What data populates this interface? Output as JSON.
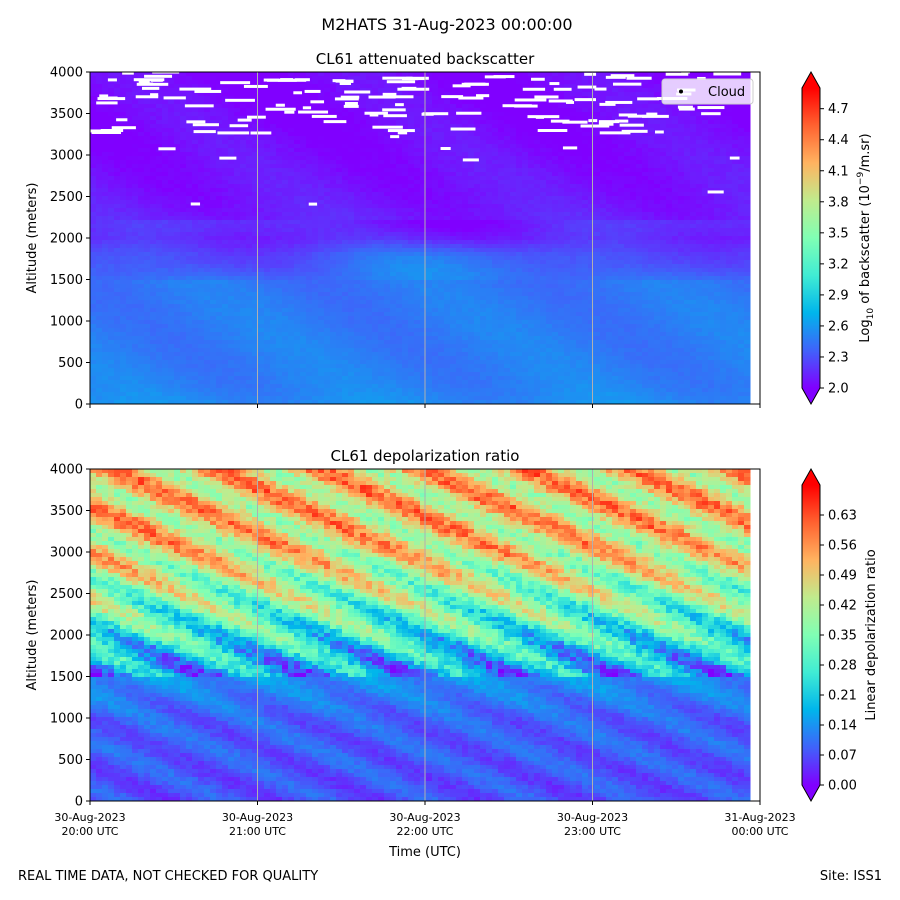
{
  "suptitle": "M2HATS 31-Aug-2023 00:00:00",
  "footer_left": "REAL TIME DATA, NOT CHECKED FOR QUALITY",
  "footer_right": "Site: ISS1",
  "xlabel": "Time (UTC)",
  "x_ticks": [
    {
      "line1": "30-Aug-2023",
      "line2": "20:00 UTC"
    },
    {
      "line1": "30-Aug-2023",
      "line2": "21:00 UTC"
    },
    {
      "line1": "30-Aug-2023",
      "line2": "22:00 UTC"
    },
    {
      "line1": "30-Aug-2023",
      "line2": "23:00 UTC"
    },
    {
      "line1": "31-Aug-2023",
      "line2": "00:00 UTC"
    }
  ],
  "colors": {
    "colormap": [
      "#8000ff",
      "#4062fa",
      "#00b5eb",
      "#40ecd4",
      "#80ffb4",
      "#c0eb8d",
      "#ffb360",
      "#ff6230",
      "#ff0000"
    ],
    "cloud_marker": "#ffffff",
    "grid": "#b0b0b0"
  },
  "chart_data": [
    {
      "type": "heatmap",
      "title": "CL61 attenuated backscatter",
      "xlabel": "",
      "ylabel": "Altitude (meters)",
      "x_range_hours": [
        20,
        24
      ],
      "ylim": [
        0,
        4000
      ],
      "y_ticks": [
        0,
        500,
        1000,
        1500,
        2000,
        2500,
        3000,
        3500,
        4000
      ],
      "colorbar": {
        "label": "Log10 of backscatter (10^-9/m.sr)",
        "label_parts": {
          "pre": "Log",
          "sub": "10",
          "mid": " of backscatter (10",
          "sup": "−9",
          "post": "/m.sr)"
        },
        "min": 2.0,
        "max": 4.9,
        "ticks": [
          "2.0",
          "2.3",
          "2.6",
          "2.9",
          "3.2",
          "3.5",
          "3.8",
          "4.1",
          "4.4",
          "4.7"
        ],
        "extend": "both"
      },
      "legend": {
        "label": "Cloud",
        "location": "top-right"
      },
      "profile": [
        {
          "altitude": 0,
          "value": 2.55
        },
        {
          "altitude": 200,
          "value": 2.5
        },
        {
          "altitude": 500,
          "value": 2.48
        },
        {
          "altitude": 1000,
          "value": 2.47
        },
        {
          "altitude": 1500,
          "value": 2.45
        },
        {
          "altitude": 1800,
          "value": 2.33
        },
        {
          "altitude": 2000,
          "value": 2.15
        },
        {
          "altitude": 2500,
          "value": 2.08
        },
        {
          "altitude": 3000,
          "value": 2.05
        },
        {
          "altitude": 3500,
          "value": 2.03
        },
        {
          "altitude": 4000,
          "value": 2.02
        }
      ],
      "notes": "Cloud returns (white) scattered between ~2400 m and 4000 m, dense above 3300 m"
    },
    {
      "type": "heatmap",
      "title": "CL61 depolarization ratio",
      "xlabel": "Time (UTC)",
      "ylabel": "Altitude (meters)",
      "x_range_hours": [
        20,
        24
      ],
      "ylim": [
        0,
        4000
      ],
      "y_ticks": [
        0,
        500,
        1000,
        1500,
        2000,
        2500,
        3000,
        3500,
        4000
      ],
      "colorbar": {
        "label": "Linear depolarization ratio",
        "min": 0.0,
        "max": 0.7,
        "ticks": [
          "0.00",
          "0.07",
          "0.14",
          "0.21",
          "0.28",
          "0.35",
          "0.42",
          "0.49",
          "0.56",
          "0.63"
        ],
        "extend": "both"
      },
      "profile": [
        {
          "altitude": 0,
          "value": 0.07
        },
        {
          "altitude": 500,
          "value": 0.08
        },
        {
          "altitude": 1000,
          "value": 0.09
        },
        {
          "altitude": 1500,
          "value": 0.14
        },
        {
          "altitude": 1800,
          "value": 0.21
        },
        {
          "altitude": 2000,
          "value": 0.27
        },
        {
          "altitude": 2500,
          "value": 0.38
        },
        {
          "altitude": 3000,
          "value": 0.47
        },
        {
          "altitude": 3500,
          "value": 0.5
        },
        {
          "altitude": 4000,
          "value": 0.5
        }
      ]
    }
  ]
}
